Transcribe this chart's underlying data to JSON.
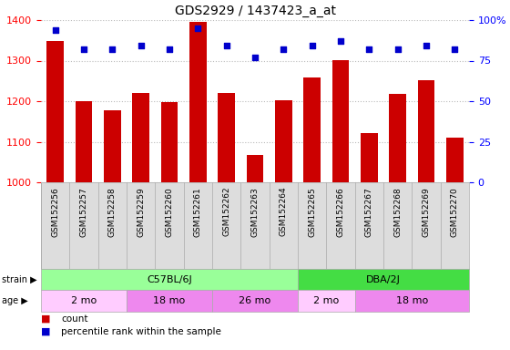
{
  "title": "GDS2929 / 1437423_a_at",
  "samples": [
    "GSM152256",
    "GSM152257",
    "GSM152258",
    "GSM152259",
    "GSM152260",
    "GSM152261",
    "GSM152262",
    "GSM152263",
    "GSM152264",
    "GSM152265",
    "GSM152266",
    "GSM152267",
    "GSM152268",
    "GSM152269",
    "GSM152270"
  ],
  "counts": [
    1348,
    1200,
    1178,
    1220,
    1198,
    1395,
    1220,
    1068,
    1203,
    1258,
    1302,
    1122,
    1218,
    1252,
    1109
  ],
  "percentile_ranks": [
    94,
    82,
    82,
    84,
    82,
    95,
    84,
    77,
    82,
    84,
    87,
    82,
    82,
    84,
    82
  ],
  "ymin": 1000,
  "ymax": 1400,
  "yticks": [
    1000,
    1100,
    1200,
    1300,
    1400
  ],
  "right_yticks": [
    0,
    25,
    50,
    75,
    100
  ],
  "bar_color": "#cc0000",
  "dot_color": "#0000cc",
  "strain_groups": [
    {
      "label": "C57BL/6J",
      "start": 0,
      "end": 8,
      "color": "#99ff99"
    },
    {
      "label": "DBA/2J",
      "start": 9,
      "end": 14,
      "color": "#44dd44"
    }
  ],
  "age_groups": [
    {
      "label": "2 mo",
      "start": 0,
      "end": 2,
      "color": "#ffccff"
    },
    {
      "label": "18 mo",
      "start": 3,
      "end": 5,
      "color": "#ee88ee"
    },
    {
      "label": "26 mo",
      "start": 6,
      "end": 8,
      "color": "#ee88ee"
    },
    {
      "label": "2 mo",
      "start": 9,
      "end": 10,
      "color": "#ffccff"
    },
    {
      "label": "18 mo",
      "start": 11,
      "end": 14,
      "color": "#ee88ee"
    }
  ],
  "legend_count_color": "#cc0000",
  "legend_pct_color": "#0000cc",
  "bg_color": "#ffffff",
  "grid_color": "#bbbbbb",
  "label_bg_color": "#dddddd",
  "strain_label": "strain",
  "age_label": "age"
}
